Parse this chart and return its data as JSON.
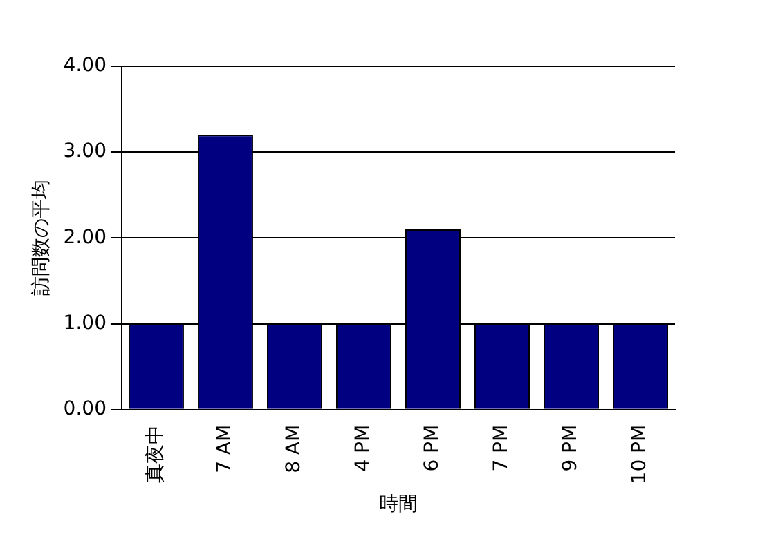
{
  "chart_data": {
    "type": "bar",
    "xlabel": "時間",
    "ylabel": "訪問数の平均",
    "categories": [
      "真夜中",
      "7 AM",
      "8 AM",
      "4 PM",
      "6 PM",
      "7 PM",
      "9 PM",
      "10 PM"
    ],
    "values": [
      1,
      3.2,
      1,
      1,
      2.1,
      1,
      1,
      1
    ],
    "color": "#000080",
    "ylim": [
      0,
      4
    ],
    "yticks": [
      {
        "value": 0,
        "label": "0.00"
      },
      {
        "value": 1,
        "label": "1.00"
      },
      {
        "value": 2,
        "label": "2.00"
      },
      {
        "value": 3,
        "label": "3.00"
      },
      {
        "value": 4,
        "label": "4.00"
      }
    ],
    "grid": "y"
  }
}
